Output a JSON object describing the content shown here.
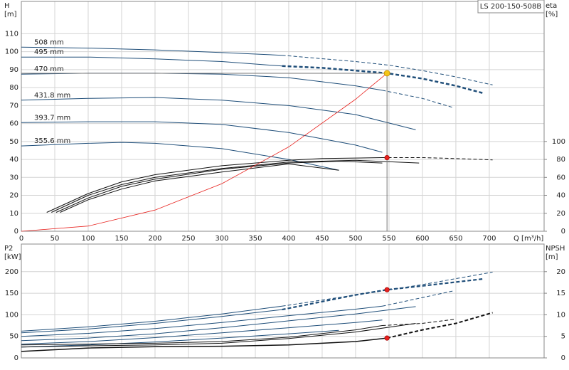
{
  "chart_data": [
    {
      "type": "line",
      "label_box": "LS 200-150-508B",
      "xlabel": "Q [m³/h]",
      "ylabel": [
        "H",
        "[m]"
      ],
      "y2label": [
        "eta",
        "[%]"
      ],
      "xlim": [
        0,
        782
      ],
      "ylim": [
        0,
        128
      ],
      "y2lim": [
        0,
        256
      ],
      "xticks": [
        0,
        50,
        100,
        150,
        200,
        250,
        300,
        350,
        400,
        450,
        500,
        550,
        600,
        650,
        700
      ],
      "yticks": [
        0,
        10,
        20,
        30,
        40,
        50,
        60,
        70,
        80,
        90,
        100,
        110
      ],
      "y2ticks": [
        0,
        20,
        40,
        60,
        80,
        100
      ],
      "grid": true,
      "series": [
        {
          "name": "508 mm",
          "color": "#1f4e79",
          "x": [
            0,
            100,
            200,
            300,
            390
          ],
          "values": [
            102.5,
            102,
            101,
            99.5,
            98
          ]
        },
        {
          "color": "#1f4e79",
          "linestyle": "dashed",
          "x": [
            390,
            500,
            550,
            600,
            650,
            705
          ],
          "values": [
            98,
            94.5,
            92.5,
            89.5,
            86,
            81.5
          ]
        },
        {
          "name": "495 mm",
          "color": "#1f4e79",
          "x": [
            0,
            100,
            200,
            300,
            390
          ],
          "values": [
            97,
            97,
            96,
            94.5,
            92
          ]
        },
        {
          "color": "#1f4e79",
          "linestyle": "dashed",
          "width": 2.5,
          "x": [
            390,
            450,
            500,
            547,
            600,
            650,
            690
          ],
          "values": [
            92,
            91,
            89.5,
            88,
            85,
            81,
            77
          ]
        },
        {
          "name": "470 mm",
          "color": "#1f4e79",
          "x": [
            0,
            100,
            200,
            300,
            400,
            500,
            540
          ],
          "values": [
            87.5,
            88,
            88,
            87.5,
            85.5,
            81,
            78.5
          ]
        },
        {
          "color": "#1f4e79",
          "linestyle": "dashed",
          "x": [
            540,
            600,
            645
          ],
          "values": [
            78.5,
            74,
            69
          ]
        },
        {
          "name": "431.8 mm",
          "color": "#1f4e79",
          "x": [
            0,
            100,
            200,
            300,
            400,
            500,
            590
          ],
          "values": [
            73,
            74,
            74.5,
            73,
            70,
            65,
            56.5
          ]
        },
        {
          "name": "393.7 mm",
          "color": "#1f4e79",
          "x": [
            0,
            100,
            200,
            300,
            400,
            500,
            540
          ],
          "values": [
            60.5,
            61,
            61,
            59.5,
            55,
            48,
            44
          ]
        },
        {
          "name": "355.6 mm",
          "color": "#1f4e79",
          "x": [
            0,
            100,
            150,
            200,
            300,
            400,
            475
          ],
          "values": [
            47.5,
            49,
            49.5,
            49,
            46,
            40,
            34
          ]
        },
        {
          "color": "#111111",
          "axis": "y2",
          "x": [
            38,
            100,
            150,
            200,
            300,
            400,
            450,
            540
          ],
          "values": [
            21,
            42,
            55,
            63,
            73,
            79,
            81,
            82
          ]
        },
        {
          "color": "#111111",
          "axis": "y2",
          "linestyle": "dashed",
          "x": [
            540,
            600,
            650,
            705
          ],
          "values": [
            82,
            82,
            81,
            79.5
          ]
        },
        {
          "color": "#111111",
          "axis": "y2",
          "x": [
            45,
            100,
            150,
            200,
            300,
            400,
            500,
            595
          ],
          "values": [
            21,
            40,
            52,
            60,
            70,
            77,
            79,
            76
          ]
        },
        {
          "color": "#111111",
          "axis": "y2",
          "x": [
            52,
            100,
            150,
            200,
            300,
            400,
            475,
            540
          ],
          "values": [
            21,
            37,
            50,
            58,
            69,
            76,
            78,
            76
          ]
        },
        {
          "color": "#111111",
          "axis": "y2",
          "x": [
            58,
            100,
            150,
            200,
            300,
            400,
            475
          ],
          "values": [
            21,
            35,
            47,
            56,
            66,
            75,
            68
          ]
        },
        {
          "color": "#e8231f",
          "width": 0.8,
          "x": [
            0,
            100,
            200,
            300,
            400,
            500,
            547
          ],
          "values": [
            0,
            2.9,
            11.8,
            26.5,
            47,
            73.5,
            88
          ]
        }
      ],
      "points": [
        {
          "x": 547,
          "y": 88,
          "color": "#f5c518",
          "guides": true
        },
        {
          "x": 547,
          "y": 82,
          "axis": "y2",
          "color": "#e8231f"
        }
      ]
    },
    {
      "type": "line",
      "ylabel": [
        "P2",
        "[kW]"
      ],
      "y2label": [
        "NPSH",
        "[m]"
      ],
      "xlim": [
        0,
        782
      ],
      "ylim": [
        0,
        264
      ],
      "y2lim": [
        0,
        26.4
      ],
      "xticks": [
        0,
        50,
        100,
        150,
        200,
        250,
        300,
        350,
        400,
        450,
        500,
        550,
        600,
        650,
        700
      ],
      "yticks": [
        0,
        50,
        100,
        150,
        200
      ],
      "y2ticks": [
        0,
        5,
        10,
        15,
        20
      ],
      "grid": true,
      "series": [
        {
          "color": "#1f4e79",
          "x": [
            0,
            100,
            200,
            300,
            390
          ],
          "values": [
            62,
            72,
            85,
            102,
            120
          ]
        },
        {
          "color": "#1f4e79",
          "linestyle": "dashed",
          "x": [
            390,
            500,
            600,
            705
          ],
          "values": [
            120,
            146,
            170,
            199
          ]
        },
        {
          "color": "#1f4e79",
          "x": [
            0,
            100,
            200,
            300,
            390
          ],
          "values": [
            58,
            67,
            80,
            96,
            112
          ]
        },
        {
          "color": "#1f4e79",
          "linestyle": "dashed",
          "width": 2.2,
          "x": [
            390,
            500,
            547,
            600,
            690
          ],
          "values": [
            112,
            146,
            158,
            167,
            183
          ]
        },
        {
          "color": "#1f4e79",
          "x": [
            0,
            100,
            200,
            300,
            400,
            500,
            540
          ],
          "values": [
            50,
            57,
            68,
            82,
            98,
            113,
            120
          ]
        },
        {
          "color": "#1f4e79",
          "linestyle": "dashed",
          "x": [
            540,
            600,
            645
          ],
          "values": [
            120,
            140,
            155
          ]
        },
        {
          "color": "#1f4e79",
          "x": [
            0,
            100,
            200,
            300,
            400,
            500,
            590
          ],
          "values": [
            40,
            46,
            56,
            70,
            86,
            102,
            119
          ]
        },
        {
          "color": "#1f4e79",
          "x": [
            0,
            100,
            200,
            300,
            400,
            500,
            540
          ],
          "values": [
            32,
            38,
            47,
            58,
            70,
            82,
            88
          ]
        },
        {
          "color": "#1f4e79",
          "x": [
            0,
            100,
            200,
            300,
            400,
            475
          ],
          "values": [
            25,
            30,
            37,
            46,
            56,
            64
          ]
        },
        {
          "color": "#111111",
          "axis": "y2",
          "width": 1.5,
          "x": [
            0,
            100,
            200,
            300,
            400,
            500,
            547
          ],
          "values": [
            1.5,
            2.3,
            2.6,
            2.7,
            3,
            3.8,
            4.6
          ]
        },
        {
          "color": "#111111",
          "axis": "y2",
          "linestyle": "dashed",
          "width": 2,
          "x": [
            547,
            600,
            650,
            705
          ],
          "values": [
            4.6,
            6.5,
            8,
            10.5
          ]
        },
        {
          "color": "#111111",
          "axis": "y2",
          "x": [
            0,
            100,
            200,
            300,
            400,
            500,
            590
          ],
          "values": [
            2.5,
            2.8,
            3,
            3.4,
            4.5,
            6,
            8
          ]
        },
        {
          "color": "#111111",
          "axis": "y2",
          "x": [
            0,
            100,
            200,
            300,
            400,
            500,
            540
          ],
          "values": [
            3,
            3.2,
            3.4,
            3.8,
            4.8,
            6.5,
            7.5
          ]
        },
        {
          "color": "#111111",
          "axis": "y2",
          "linestyle": "dashed",
          "x": [
            540,
            600,
            650
          ],
          "values": [
            7.5,
            8,
            9
          ]
        }
      ],
      "points": [
        {
          "x": 547,
          "y": 158,
          "color": "#e8231f"
        },
        {
          "x": 547,
          "y": 4.6,
          "axis": "y2",
          "color": "#e8231f"
        }
      ]
    }
  ]
}
